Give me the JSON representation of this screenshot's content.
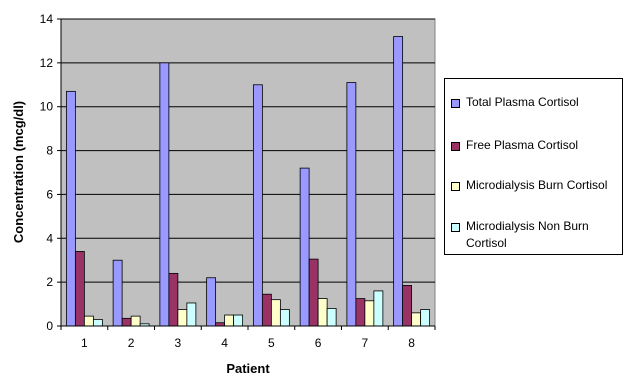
{
  "chart_data": {
    "type": "bar",
    "title": "",
    "xlabel": "Patient",
    "ylabel": "Concentration (mcg/dl)",
    "categories": [
      "1",
      "2",
      "3",
      "4",
      "5",
      "6",
      "7",
      "8"
    ],
    "ylim": [
      0,
      14
    ],
    "yticks": [
      "0",
      "2",
      "4",
      "6",
      "8",
      "10",
      "12",
      "14"
    ],
    "grid": "horizontal",
    "legend_position": "right",
    "plot_background": "#c0c0c0",
    "series": [
      {
        "name": "Total Plasma Cortisol",
        "color": "#9999ff",
        "values": [
          10.7,
          3.0,
          12.0,
          2.2,
          11.0,
          7.2,
          11.1,
          13.2
        ]
      },
      {
        "name": "Free Plasma Cortisol",
        "color": "#993366",
        "values": [
          3.4,
          0.35,
          2.4,
          0.15,
          1.45,
          3.05,
          1.25,
          1.85
        ]
      },
      {
        "name": "Microdialysis Burn Cortisol",
        "color": "#ffffcc",
        "values": [
          0.45,
          0.45,
          0.75,
          0.5,
          1.2,
          1.25,
          1.15,
          0.6
        ]
      },
      {
        "name": "Microdialysis Non Burn Cortisol",
        "color": "#ccffff",
        "values": [
          0.3,
          0.1,
          1.05,
          0.5,
          0.75,
          0.8,
          1.6,
          0.75
        ]
      }
    ]
  }
}
